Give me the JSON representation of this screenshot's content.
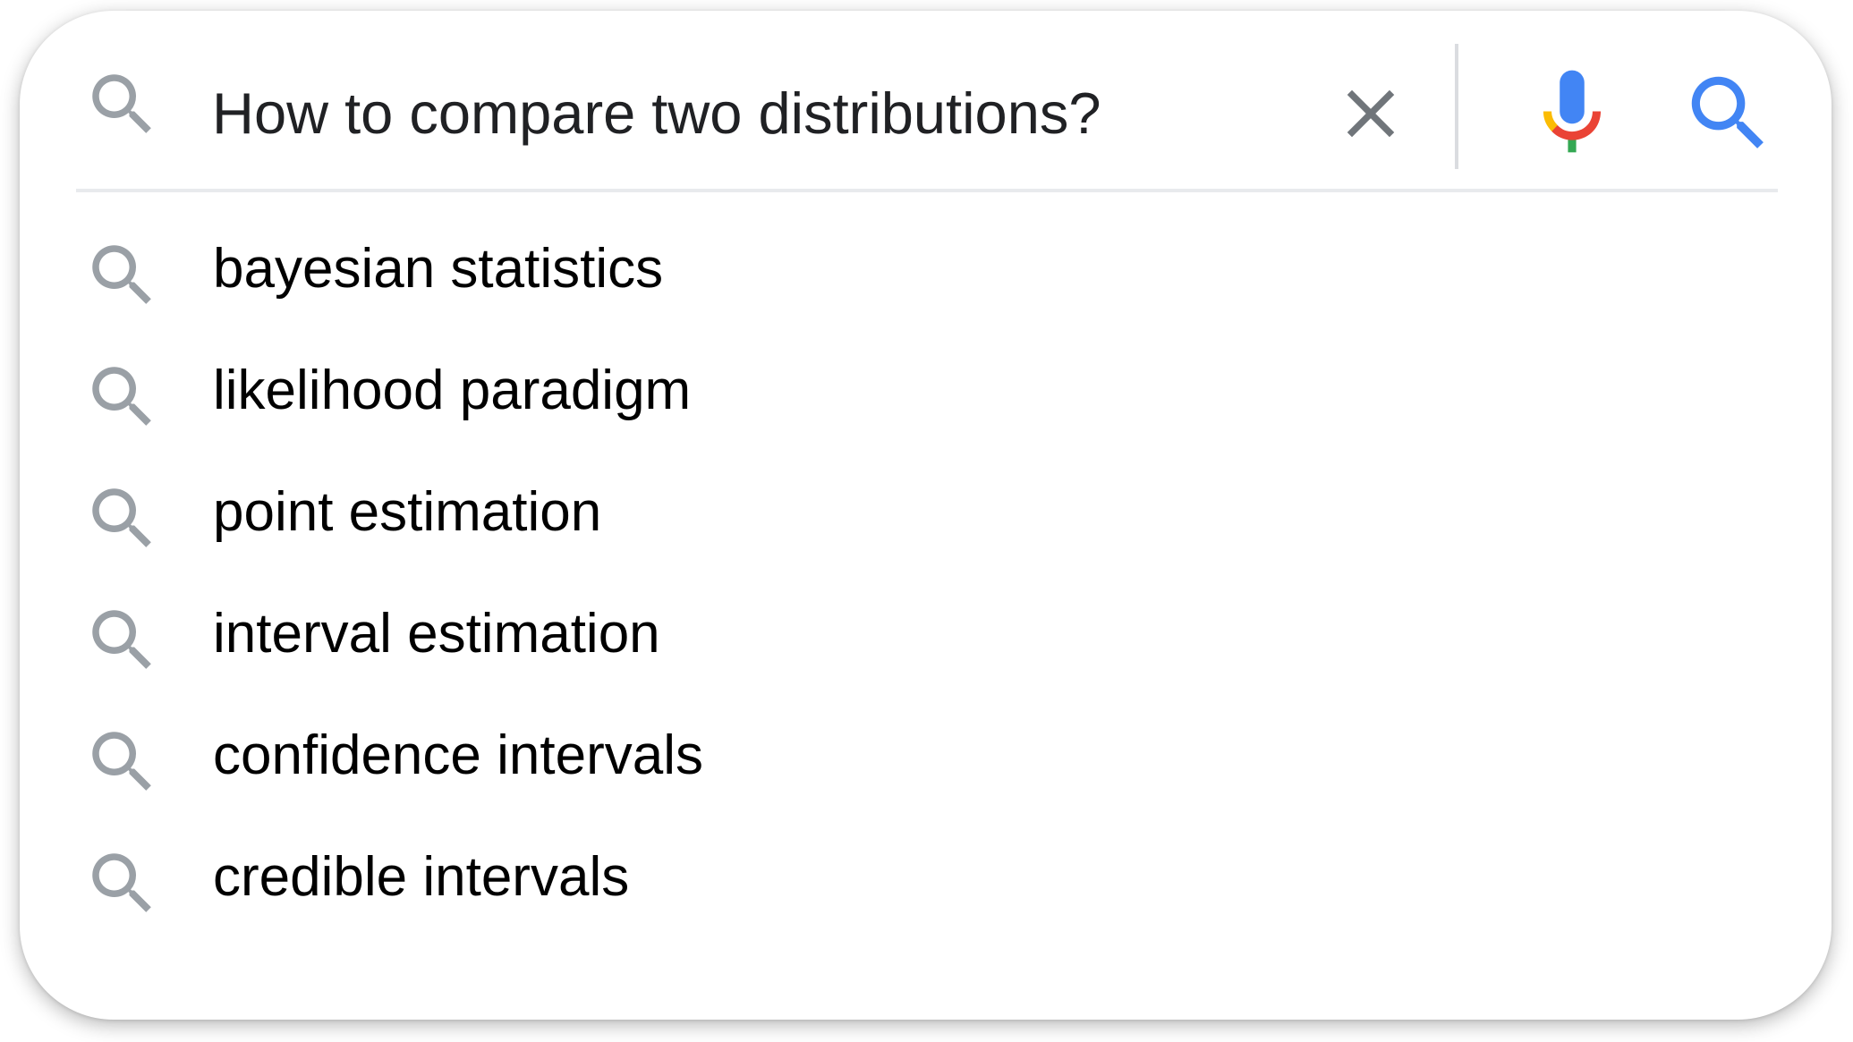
{
  "search": {
    "query": "How to compare two distributions?",
    "left_icon": "search-icon",
    "clear_icon": "close-icon",
    "mic_icon": "microphone-icon",
    "submit_icon": "search-icon"
  },
  "suggestions": [
    {
      "label": "bayesian statistics",
      "icon": "search-icon"
    },
    {
      "label": "likelihood paradigm",
      "icon": "search-icon"
    },
    {
      "label": "point estimation",
      "icon": "search-icon"
    },
    {
      "label": "interval estimation",
      "icon": "search-icon"
    },
    {
      "label": "confidence intervals",
      "icon": "search-icon"
    },
    {
      "label": "credible intervals",
      "icon": "search-icon"
    }
  ],
  "colors": {
    "icon_gray": "#9aa0a6",
    "clear_gray": "#70757a",
    "accent_blue": "#4285f4",
    "google_red": "#ea4335",
    "google_yellow": "#fbbc04",
    "google_green": "#34a853"
  }
}
